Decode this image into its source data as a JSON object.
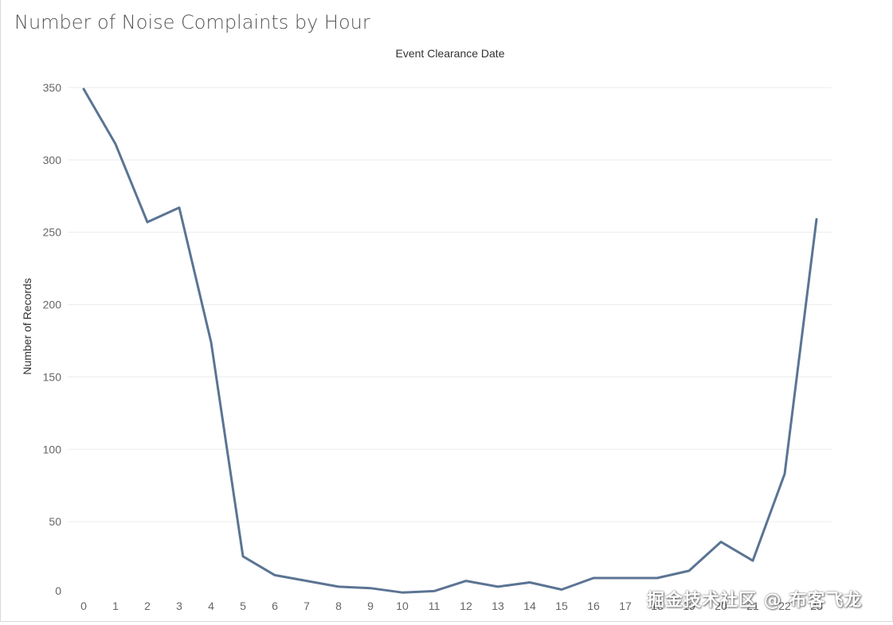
{
  "page": {
    "title": "Number of Noise Complaints by Hour",
    "watermark": "掘金技术社区 @ 布客飞龙"
  },
  "colors": {
    "line": "#5b7493",
    "grid": "#ececec",
    "tick_text": "#666666",
    "axis_title": "#333333",
    "title": "#555555"
  },
  "chart_data": {
    "type": "line",
    "title": "Number of Noise Complaints by Hour",
    "header": "Event Clearance Date",
    "xlabel": "",
    "ylabel": "Number of Records",
    "x": [
      0,
      1,
      2,
      3,
      4,
      5,
      6,
      7,
      8,
      9,
      10,
      11,
      12,
      13,
      14,
      15,
      16,
      17,
      18,
      19,
      20,
      21,
      22,
      23
    ],
    "x_tick_labels": [
      "0",
      "1",
      "2",
      "3",
      "4",
      "5",
      "6",
      "7",
      "8",
      "9",
      "10",
      "11",
      "12",
      "13",
      "14",
      "15",
      "16",
      "17",
      "18",
      "19",
      "20",
      "21",
      "22",
      "23"
    ],
    "series": [
      {
        "values": [
          349,
          311,
          257,
          267,
          174,
          26,
          13,
          9,
          5,
          4,
          1,
          2,
          9,
          5,
          8,
          3,
          11,
          11,
          11,
          16,
          36,
          23,
          83,
          259
        ]
      }
    ],
    "ylim": [
      0,
      350
    ],
    "y_ticks": [
      0,
      50,
      100,
      150,
      200,
      250,
      300,
      350
    ],
    "y_tick_labels": [
      "0",
      "50",
      "100",
      "150",
      "200",
      "250",
      "300",
      "350"
    ],
    "grid": true,
    "legend": "none"
  }
}
